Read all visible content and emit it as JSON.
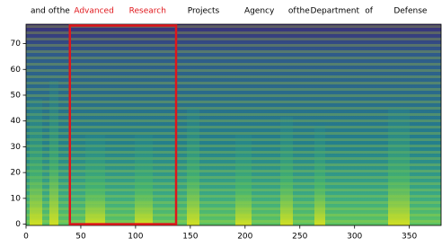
{
  "chart_data": {
    "type": "spectrogram",
    "xlim": [
      0,
      379
    ],
    "ylim": [
      -0.5,
      77.5
    ],
    "xticks": [
      0,
      50,
      100,
      150,
      200,
      250,
      300,
      350
    ],
    "yticks": [
      0,
      10,
      20,
      30,
      40,
      50,
      60,
      70
    ],
    "words": [
      {
        "text": "and",
        "x": 11,
        "color": "#000000"
      },
      {
        "text": "of",
        "x": 24,
        "color": "#000000"
      },
      {
        "text": "the",
        "x": 34,
        "color": "#000000"
      },
      {
        "text": "Advanced",
        "x": 62,
        "color": "#e0161b"
      },
      {
        "text": "Research",
        "x": 111,
        "color": "#e0161b"
      },
      {
        "text": "Projects",
        "x": 162,
        "color": "#000000"
      },
      {
        "text": "Agency",
        "x": 213,
        "color": "#000000"
      },
      {
        "text": "of",
        "x": 243,
        "color": "#000000"
      },
      {
        "text": "the",
        "x": 253,
        "color": "#000000"
      },
      {
        "text": "Department",
        "x": 282,
        "color": "#000000"
      },
      {
        "text": "of",
        "x": 313,
        "color": "#000000"
      },
      {
        "text": "Defense",
        "x": 351,
        "color": "#000000"
      }
    ],
    "highlight": {
      "x": [
        40,
        137
      ],
      "y": [
        0,
        77
      ],
      "color": "#e0161b"
    }
  }
}
